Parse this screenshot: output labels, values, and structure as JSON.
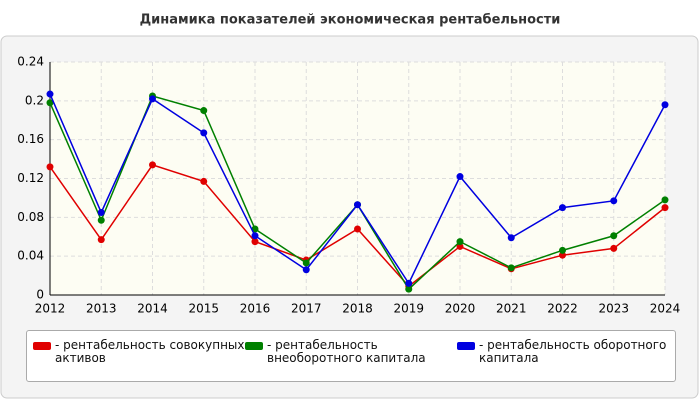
{
  "chart_data": {
    "type": "line",
    "title": "Динамика показателей экономическая рентабельности",
    "categories": [
      "2012",
      "2013",
      "2014",
      "2015",
      "2016",
      "2017",
      "2018",
      "2019",
      "2020",
      "2021",
      "2022",
      "2023",
      "2024"
    ],
    "series": [
      {
        "name": "- рентабельность совокупных активов",
        "color": "#e00000",
        "values": [
          0.132,
          0.057,
          0.134,
          0.117,
          0.055,
          0.036,
          0.068,
          0.009,
          0.05,
          0.027,
          0.041,
          0.048,
          0.09
        ]
      },
      {
        "name": "- рентабельность внеоборотного капитала",
        "color": "#008000",
        "values": [
          0.198,
          0.077,
          0.205,
          0.19,
          0.068,
          0.033,
          0.093,
          0.006,
          0.055,
          0.028,
          0.046,
          0.061,
          0.098
        ]
      },
      {
        "name": "- рентабельность оборотного капитала",
        "color": "#0000e0",
        "values": [
          0.207,
          0.085,
          0.202,
          0.167,
          0.061,
          0.026,
          0.093,
          0.012,
          0.122,
          0.059,
          0.09,
          0.097,
          0.196
        ]
      }
    ],
    "ylim": [
      0,
      0.24
    ],
    "yticks": [
      0,
      0.04,
      0.08,
      0.12,
      0.16,
      0.2,
      0.24
    ],
    "grid": true
  }
}
